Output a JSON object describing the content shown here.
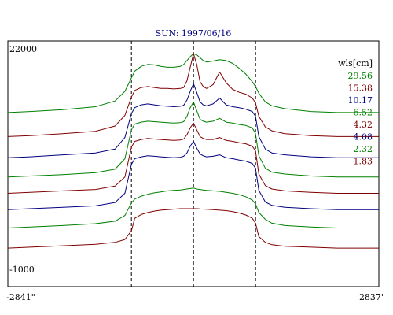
{
  "chart_data": {
    "type": "line",
    "title": "SUN: 1997/06/16",
    "xlim": [
      -2841,
      2837
    ],
    "ylim": [
      -1000,
      22000
    ],
    "x_tick_labels": [
      "-2841\"",
      "2837\""
    ],
    "y_tick_labels": [
      "22000",
      "-1000"
    ],
    "grid": false,
    "legend": {
      "title": "wls[cm]",
      "placement": "top-right"
    },
    "reference_lines_x": [
      -950,
      0,
      950
    ],
    "x": [
      -2841,
      -2500,
      -2000,
      -1500,
      -1200,
      -1050,
      -950,
      -900,
      -800,
      -700,
      -600,
      -500,
      -400,
      -300,
      -200,
      -150,
      -100,
      -50,
      0,
      50,
      100,
      150,
      200,
      300,
      400,
      500,
      600,
      700,
      800,
      900,
      950,
      1000,
      1100,
      1200,
      1400,
      1800,
      2200,
      2837
    ],
    "series": [
      {
        "name": "29.56",
        "color": "#008000",
        "values": [
          15300,
          15400,
          15600,
          15900,
          16500,
          17500,
          18900,
          19600,
          20100,
          20300,
          20250,
          20100,
          20000,
          20000,
          20100,
          20300,
          20700,
          21100,
          21400,
          21300,
          21000,
          20700,
          20550,
          20650,
          20800,
          20700,
          20400,
          19900,
          19300,
          18500,
          18000,
          17300,
          16400,
          16000,
          15700,
          15400,
          15300,
          15300
        ]
      },
      {
        "name": "15.38",
        "color": "#800000",
        "values": [
          12800,
          12900,
          13100,
          13350,
          13900,
          15000,
          16900,
          17600,
          17900,
          18000,
          17900,
          17800,
          17800,
          17750,
          17800,
          17900,
          18600,
          20000,
          21400,
          20300,
          18500,
          18000,
          17800,
          18200,
          19500,
          18400,
          17700,
          17400,
          17200,
          16800,
          16300,
          14900,
          13800,
          13400,
          13100,
          12900,
          12800,
          12800
        ]
      },
      {
        "name": "10.17",
        "color": "#000080",
        "values": [
          10600,
          10700,
          10900,
          11100,
          11500,
          12700,
          15200,
          15800,
          16100,
          16200,
          16100,
          16000,
          15950,
          15900,
          15950,
          16050,
          16600,
          17500,
          18300,
          17400,
          16400,
          16100,
          16000,
          16200,
          16800,
          16100,
          15900,
          15800,
          15650,
          15400,
          14900,
          12800,
          11500,
          11100,
          10900,
          10700,
          10600,
          10600
        ]
      },
      {
        "name": "6.52",
        "color": "#008000",
        "values": [
          8600,
          8700,
          8850,
          9050,
          9400,
          10500,
          13500,
          14100,
          14300,
          14400,
          14350,
          14300,
          14250,
          14200,
          14250,
          14350,
          14900,
          15800,
          16400,
          15500,
          14600,
          14400,
          14300,
          14400,
          14700,
          14300,
          14200,
          14050,
          13950,
          13700,
          13100,
          10800,
          9500,
          9100,
          8900,
          8700,
          8600,
          8600
        ]
      },
      {
        "name": "4.32",
        "color": "#800000",
        "values": [
          6900,
          7000,
          7150,
          7300,
          7650,
          8600,
          11700,
          12300,
          12500,
          12600,
          12550,
          12500,
          12450,
          12400,
          12450,
          12550,
          13000,
          13700,
          14200,
          13500,
          12800,
          12600,
          12500,
          12500,
          12700,
          12400,
          12300,
          12150,
          12050,
          11800,
          11300,
          8900,
          7700,
          7350,
          7150,
          7000,
          6900,
          6900
        ]
      },
      {
        "name": "4.08",
        "color": "#000080",
        "values": [
          5200,
          5300,
          5450,
          5600,
          5950,
          6900,
          9900,
          10500,
          10700,
          10800,
          10750,
          10700,
          10650,
          10600,
          10650,
          10750,
          11100,
          11800,
          12300,
          11600,
          11000,
          10800,
          10700,
          10750,
          10900,
          10600,
          10500,
          10350,
          10250,
          10000,
          9500,
          7200,
          6000,
          5650,
          5450,
          5300,
          5200,
          5200
        ]
      },
      {
        "name": "2.32",
        "color": "#008000",
        "values": [
          3300,
          3400,
          3550,
          3750,
          4000,
          4600,
          5900,
          6300,
          6600,
          6800,
          6950,
          7050,
          7150,
          7200,
          7250,
          7300,
          7350,
          7400,
          7450,
          7350,
          7300,
          7250,
          7200,
          7150,
          7100,
          7000,
          6900,
          6750,
          6550,
          6200,
          5800,
          4900,
          4200,
          3800,
          3550,
          3400,
          3300,
          3300
        ]
      },
      {
        "name": "1.83",
        "color": "#800000",
        "values": [
          1200,
          1300,
          1450,
          1600,
          1800,
          2100,
          3000,
          4300,
          4700,
          4900,
          5050,
          5150,
          5200,
          5250,
          5300,
          5300,
          5300,
          5300,
          5300,
          5300,
          5280,
          5260,
          5240,
          5200,
          5150,
          5100,
          5000,
          4850,
          4650,
          4300,
          3800,
          2400,
          1800,
          1550,
          1400,
          1300,
          1200,
          1200
        ]
      }
    ]
  }
}
